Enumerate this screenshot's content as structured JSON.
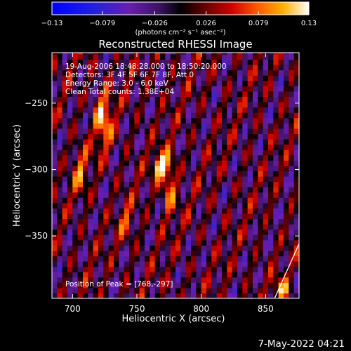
{
  "chart_data": {
    "type": "heatmap",
    "title": "Reconstructed RHESSI Image",
    "xlabel": "Heliocentric X (arcsec)",
    "ylabel": "Heliocentric Y (arcsec)",
    "xlim": [
      684,
      876
    ],
    "ylim": [
      -397,
      -212
    ],
    "x_ticks": [
      {
        "value": 700,
        "label": "700"
      },
      {
        "value": 750,
        "label": "750"
      },
      {
        "value": 800,
        "label": "800"
      },
      {
        "value": 850,
        "label": "850"
      }
    ],
    "y_ticks": [
      {
        "value": -250,
        "label": "−250"
      },
      {
        "value": -300,
        "label": "−300"
      },
      {
        "value": -350,
        "label": "−350"
      }
    ],
    "colorbar": {
      "min": -0.13,
      "max": 0.13,
      "ticks": [
        {
          "value": -0.13,
          "label": "−0.13"
        },
        {
          "value": -0.079,
          "label": "−0.079"
        },
        {
          "value": -0.026,
          "label": "−0.026"
        },
        {
          "value": 0.026,
          "label": "0.026"
        },
        {
          "value": 0.079,
          "label": "0.079"
        },
        {
          "value": 0.13,
          "label": "0.13"
        }
      ],
      "unit_label": "(photons cm⁻² s⁻¹ asec⁻²)"
    },
    "annotations": {
      "time_range": "19-Aug-2006 18:48:28.000 to 18:50:20.000",
      "detectors": "Detectors: 3F 4F 5F 6F 7F 8F, Att 0",
      "energy_range": "Energy Range: 3.0 - 6.0 keV",
      "clean": "Clean     Total counts: 1.38E+04",
      "peak": "Position of Peak = [768,-297]"
    },
    "peak": {
      "x": 768,
      "y": -297
    },
    "limb_line": [
      {
        "x": 857,
        "y": -397
      },
      {
        "x": 876,
        "y": -356
      }
    ],
    "sources": [
      {
        "x": 768,
        "y": -297,
        "sx": 3.5,
        "sy": 6,
        "amp": 0.13
      },
      {
        "x": 724,
        "y": -262,
        "sx": 4.5,
        "sy": 16,
        "amp": 0.1
      },
      {
        "x": 775,
        "y": -310,
        "sx": 4,
        "sy": 16,
        "amp": 0.09
      },
      {
        "x": 706,
        "y": -300,
        "sx": 4,
        "sy": 14,
        "amp": 0.06
      },
      {
        "x": 862,
        "y": -390,
        "sx": 4,
        "sy": 6,
        "amp": 0.09
      },
      {
        "x": 742,
        "y": -340,
        "sx": 4,
        "sy": 10,
        "amp": 0.05
      }
    ]
  },
  "footer": {
    "timestamp": "7-May-2022 04:21"
  }
}
